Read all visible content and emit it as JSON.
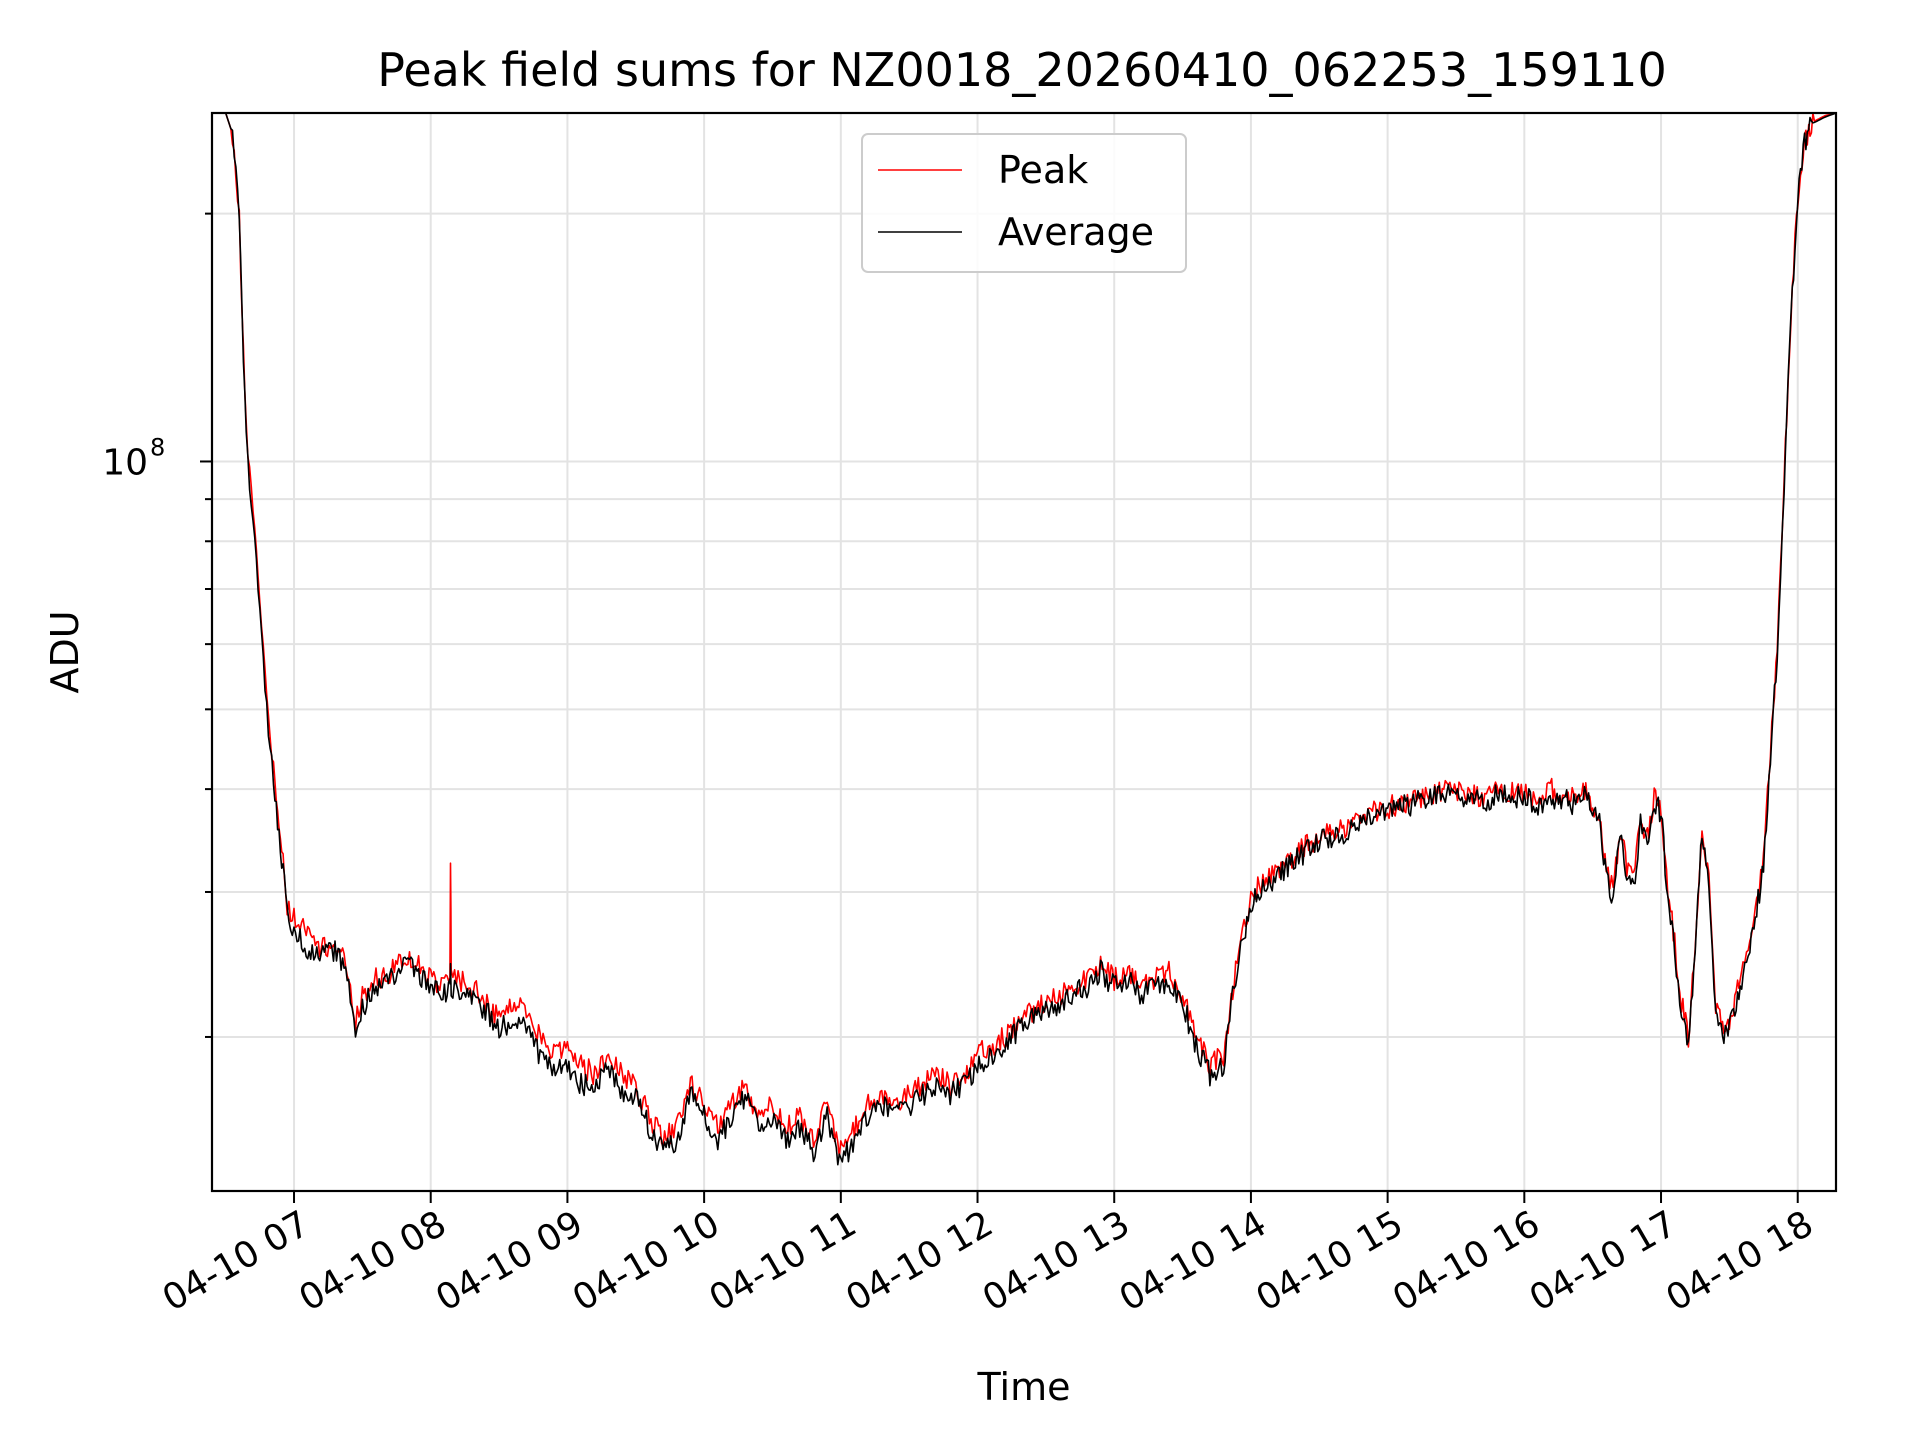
{
  "chart_data": {
    "type": "line",
    "title": "Peak field sums for NZ0018_20260410_062253_159110",
    "xlabel": "Time",
    "ylabel": "ADU",
    "yscale": "log",
    "x_unit": "hours since 04-10 00:00",
    "xlim": [
      6.4,
      18.28
    ],
    "ylim": [
      13000000,
      265000000
    ],
    "x_ticks": [
      {
        "value": 7,
        "label": "04-10 07"
      },
      {
        "value": 8,
        "label": "04-10 08"
      },
      {
        "value": 9,
        "label": "04-10 09"
      },
      {
        "value": 10,
        "label": "04-10 10"
      },
      {
        "value": 11,
        "label": "04-10 11"
      },
      {
        "value": 12,
        "label": "04-10 12"
      },
      {
        "value": 13,
        "label": "04-10 13"
      },
      {
        "value": 14,
        "label": "04-10 14"
      },
      {
        "value": 15,
        "label": "04-10 15"
      },
      {
        "value": 16,
        "label": "04-10 16"
      },
      {
        "value": 17,
        "label": "04-10 17"
      },
      {
        "value": 18,
        "label": "04-10 18"
      }
    ],
    "y_major_ticks": [
      {
        "value": 100000000,
        "base": "10",
        "exponent": "8"
      }
    ],
    "y_minor_ticks": [
      20000000,
      30000000,
      40000000,
      50000000,
      60000000,
      70000000,
      80000000,
      90000000,
      200000000
    ],
    "grid": true,
    "legend_position": "upper-center",
    "series": [
      {
        "name": "Peak",
        "color": "#ff0000",
        "x": [
          6.42,
          6.5,
          6.55,
          6.6,
          6.62,
          6.65,
          6.7,
          6.75,
          6.8,
          6.85,
          6.9,
          6.93,
          6.95,
          7.0,
          7.1,
          7.2,
          7.3,
          7.4,
          7.45,
          7.5,
          7.52,
          7.6,
          7.7,
          7.8,
          7.9,
          8.0,
          8.1,
          8.14,
          8.145,
          8.15,
          8.2,
          8.3,
          8.4,
          8.5,
          8.6,
          8.7,
          8.8,
          8.9,
          9.0,
          9.1,
          9.2,
          9.3,
          9.4,
          9.5,
          9.6,
          9.7,
          9.8,
          9.9,
          10.0,
          10.1,
          10.2,
          10.3,
          10.4,
          10.5,
          10.6,
          10.7,
          10.8,
          10.9,
          11.0,
          11.1,
          11.2,
          11.3,
          11.4,
          11.5,
          11.6,
          11.7,
          11.8,
          11.9,
          12.0,
          12.1,
          12.2,
          12.3,
          12.4,
          12.5,
          12.6,
          12.7,
          12.8,
          12.9,
          13.0,
          13.1,
          13.2,
          13.3,
          13.4,
          13.5,
          13.6,
          13.7,
          13.8,
          13.9,
          13.95,
          14.0,
          14.05,
          14.1,
          14.2,
          14.25,
          14.3,
          14.35,
          14.4,
          14.5,
          14.6,
          14.7,
          14.8,
          14.9,
          15.0,
          15.1,
          15.2,
          15.3,
          15.4,
          15.5,
          15.6,
          15.7,
          15.8,
          15.9,
          16.0,
          16.1,
          16.2,
          16.25,
          16.3,
          16.35,
          16.4,
          16.45,
          16.5,
          16.55,
          16.6,
          16.65,
          16.7,
          16.75,
          16.8,
          16.85,
          16.9,
          16.95,
          17.0,
          17.05,
          17.1,
          17.15,
          17.2,
          17.25,
          17.3,
          17.35,
          17.4,
          17.45,
          17.5,
          17.55,
          17.6,
          17.65,
          17.7,
          17.75,
          17.8,
          17.85,
          17.9,
          17.95,
          18.0,
          18.05,
          18.1,
          18.2,
          18.28
        ],
        "y": [
          265000000,
          265000000,
          250000000,
          200000000,
          150000000,
          110000000,
          86000000,
          68000000,
          52000000,
          42000000,
          35000000,
          32000000,
          29000000,
          28000000,
          26500000,
          25500000,
          26000000,
          24000000,
          21000000,
          22500000,
          22500000,
          23500000,
          24000000,
          25000000,
          24500000,
          23500000,
          23000000,
          24000000,
          33000000,
          24000000,
          23500000,
          23000000,
          22000000,
          21000000,
          22000000,
          21500000,
          20000000,
          19000000,
          19500000,
          18500000,
          18000000,
          19000000,
          18000000,
          17500000,
          16000000,
          15000000,
          15500000,
          17500000,
          16500000,
          15500000,
          16500000,
          17500000,
          16000000,
          16500000,
          15500000,
          16000000,
          15000000,
          16500000,
          14500000,
          15500000,
          16500000,
          17000000,
          16500000,
          17000000,
          17500000,
          18000000,
          17500000,
          18000000,
          19000000,
          19500000,
          20000000,
          21000000,
          21500000,
          22000000,
          22500000,
          23000000,
          23500000,
          24500000,
          23500000,
          24000000,
          23000000,
          23500000,
          24000000,
          22500000,
          20000000,
          18500000,
          19000000,
          25000000,
          27000000,
          29500000,
          30500000,
          31000000,
          32000000,
          32500000,
          33000000,
          33500000,
          34000000,
          35000000,
          35500000,
          36000000,
          37000000,
          37500000,
          38000000,
          38500000,
          39000000,
          39500000,
          40000000,
          39500000,
          40000000,
          38500000,
          40000000,
          39500000,
          40000000,
          38500000,
          40000000,
          38500000,
          40000000,
          39000000,
          39500000,
          40000000,
          38000000,
          37000000,
          32000000,
          30000000,
          36000000,
          32000000,
          31000000,
          37000000,
          35000000,
          39000000,
          38000000,
          30000000,
          26000000,
          22000000,
          20000000,
          26000000,
          36000000,
          31000000,
          22000000,
          20500000,
          21000000,
          22500000,
          24500000,
          26000000,
          29000000,
          33000000,
          44000000,
          60000000,
          95000000,
          150000000,
          210000000,
          245000000,
          258000000,
          263000000,
          265000000
        ]
      },
      {
        "name": "Average",
        "color": "#000000",
        "x": [
          6.42,
          6.5,
          6.55,
          6.6,
          6.62,
          6.65,
          6.7,
          6.75,
          6.8,
          6.85,
          6.9,
          6.93,
          6.95,
          7.0,
          7.1,
          7.2,
          7.3,
          7.4,
          7.45,
          7.5,
          7.52,
          7.6,
          7.7,
          7.8,
          7.9,
          8.0,
          8.1,
          8.14,
          8.145,
          8.15,
          8.2,
          8.3,
          8.4,
          8.5,
          8.6,
          8.7,
          8.8,
          8.9,
          9.0,
          9.1,
          9.2,
          9.3,
          9.4,
          9.5,
          9.6,
          9.7,
          9.8,
          9.9,
          10.0,
          10.1,
          10.2,
          10.3,
          10.4,
          10.5,
          10.6,
          10.7,
          10.8,
          10.9,
          11.0,
          11.1,
          11.2,
          11.3,
          11.4,
          11.5,
          11.6,
          11.7,
          11.8,
          11.9,
          12.0,
          12.1,
          12.2,
          12.3,
          12.4,
          12.5,
          12.6,
          12.7,
          12.8,
          12.9,
          13.0,
          13.1,
          13.2,
          13.3,
          13.4,
          13.5,
          13.6,
          13.7,
          13.8,
          13.9,
          13.95,
          14.0,
          14.05,
          14.1,
          14.2,
          14.25,
          14.3,
          14.35,
          14.4,
          14.5,
          14.6,
          14.7,
          14.8,
          14.9,
          15.0,
          15.1,
          15.2,
          15.3,
          15.4,
          15.5,
          15.6,
          15.7,
          15.8,
          15.9,
          16.0,
          16.1,
          16.2,
          16.25,
          16.3,
          16.35,
          16.4,
          16.45,
          16.5,
          16.55,
          16.6,
          16.65,
          16.7,
          16.75,
          16.8,
          16.85,
          16.9,
          16.95,
          17.0,
          17.05,
          17.1,
          17.15,
          17.2,
          17.25,
          17.3,
          17.35,
          17.4,
          17.45,
          17.5,
          17.55,
          17.6,
          17.65,
          17.7,
          17.75,
          17.8,
          17.85,
          17.9,
          17.95,
          18.0,
          18.05,
          18.1,
          18.2,
          18.28
        ],
        "y": [
          265000000,
          265000000,
          250000000,
          200000000,
          150000000,
          108000000,
          84000000,
          66000000,
          50000000,
          41000000,
          34000000,
          31000000,
          28000000,
          27000000,
          25500000,
          25000000,
          25500000,
          23500000,
          20000000,
          22000000,
          22000000,
          23000000,
          23500000,
          24500000,
          24000000,
          23000000,
          22500000,
          23000000,
          24500000,
          23000000,
          23000000,
          22500000,
          21500000,
          20500000,
          21000000,
          20500000,
          19000000,
          18000000,
          18500000,
          17500000,
          17500000,
          18500000,
          17000000,
          17000000,
          15500000,
          14500000,
          15000000,
          17000000,
          16000000,
          15000000,
          16000000,
          17000000,
          15500000,
          16000000,
          15000000,
          15500000,
          14500000,
          16000000,
          14000000,
          15000000,
          16000000,
          16500000,
          16000000,
          16500000,
          17000000,
          17500000,
          17000000,
          17500000,
          18500000,
          19000000,
          19500000,
          20500000,
          21000000,
          21500000,
          22000000,
          22500000,
          23000000,
          24000000,
          23000000,
          23500000,
          22500000,
          23000000,
          23500000,
          22000000,
          19500000,
          18000000,
          18500000,
          24500000,
          26500000,
          29000000,
          30000000,
          30500000,
          31500000,
          32000000,
          32500000,
          33000000,
          33500000,
          34500000,
          35000000,
          35500000,
          36500000,
          37000000,
          37500000,
          38000000,
          38500000,
          39000000,
          39500000,
          39000000,
          39500000,
          38000000,
          39500000,
          39000000,
          39500000,
          38000000,
          39500000,
          38000000,
          39500000,
          38500000,
          39000000,
          39500000,
          37500000,
          36500000,
          31500000,
          29500000,
          35500000,
          31500000,
          30500000,
          36500000,
          34500000,
          38500000,
          37500000,
          29500000,
          25500000,
          21500000,
          19500000,
          25500000,
          35500000,
          30500000,
          21500000,
          20000000,
          20500000,
          22000000,
          24000000,
          25500000,
          28500000,
          32500000,
          43000000,
          59000000,
          94000000,
          148000000,
          208000000,
          243000000,
          257000000,
          262000000,
          265000000
        ]
      }
    ]
  }
}
